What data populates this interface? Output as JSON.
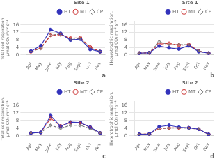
{
  "chart_data": [
    {
      "type": "line",
      "title": "Site 1",
      "annotations": [
        "a"
      ],
      "ylabel": "Total soil respiration, μmol CO₂ m⁻² s⁻¹",
      "categories": [
        "Apr",
        "May",
        "June",
        "July",
        "Aug",
        "Sept",
        "Oct",
        "Nov"
      ],
      "series": [
        {
          "name": "HT",
          "color": "#3333bb",
          "marker": "circle",
          "line_style": "solid",
          "values": [
            2.0,
            5.0,
            13.5,
            11.5,
            8.0,
            8.5,
            3.0,
            1.8
          ],
          "errors": [
            0.15,
            0.4,
            0.8,
            0.5,
            0.4,
            0.5,
            0.3,
            0.15
          ]
        },
        {
          "name": "MT",
          "color": "#cc3333",
          "marker": "open-circle",
          "line_style": "dashed",
          "values": [
            1.8,
            3.8,
            10.5,
            10.8,
            9.0,
            9.2,
            4.2,
            1.8
          ],
          "errors": [
            0.15,
            0.3,
            0.6,
            0.5,
            0.4,
            0.4,
            0.3,
            0.15
          ]
        },
        {
          "name": "CP",
          "color": "#777777",
          "marker": "open-diamond",
          "line_style": "dashed",
          "values": [
            1.8,
            3.5,
            10.5,
            11.2,
            8.2,
            8.8,
            4.0,
            1.8
          ],
          "errors": [
            0.15,
            0.3,
            0.5,
            0.6,
            0.4,
            0.5,
            0.3,
            0.15
          ]
        }
      ],
      "ylim": [
        0,
        18
      ],
      "yticks": [
        0,
        4,
        8,
        12,
        16
      ],
      "grid": "y",
      "legend": "upper right"
    },
    {
      "type": "line",
      "title": "Site 1",
      "annotations": [
        "b"
      ],
      "ylabel": "Heterotrophic respiration, μmol CO₂ m⁻² s⁻¹",
      "categories": [
        "Apr",
        "May",
        "June",
        "July",
        "Aug",
        "Sept",
        "Oct",
        "Nov"
      ],
      "series": [
        {
          "name": "HT",
          "color": "#3333bb",
          "marker": "circle",
          "line_style": "solid",
          "values": [
            1.0,
            1.2,
            4.8,
            3.8,
            3.2,
            5.0,
            1.8,
            1.0
          ],
          "errors": [
            0.1,
            0.1,
            0.4,
            0.3,
            0.3,
            0.4,
            0.2,
            0.1
          ]
        },
        {
          "name": "MT",
          "color": "#cc3333",
          "marker": "open-circle",
          "line_style": "dashed",
          "values": [
            1.0,
            1.2,
            5.8,
            6.2,
            5.2,
            5.5,
            2.0,
            1.0
          ],
          "errors": [
            0.1,
            0.1,
            0.4,
            0.4,
            0.3,
            0.4,
            0.2,
            0.1
          ]
        },
        {
          "name": "CP",
          "color": "#777777",
          "marker": "open-diamond",
          "line_style": "dashed",
          "values": [
            1.0,
            1.2,
            7.0,
            5.5,
            5.5,
            5.5,
            2.2,
            1.0
          ],
          "errors": [
            0.1,
            0.1,
            0.5,
            0.4,
            0.3,
            0.4,
            0.2,
            0.1
          ]
        }
      ],
      "ylim": [
        0,
        18
      ],
      "yticks": [
        0,
        4,
        8,
        12,
        16
      ],
      "grid": "y",
      "legend": "upper right"
    },
    {
      "type": "line",
      "title": "Site 2",
      "annotations": [
        "c"
      ],
      "ylabel": "Total soil respiration, μmol CO₂ m⁻² s⁻¹",
      "categories": [
        "Apr",
        "May",
        "June",
        "July",
        "Aug",
        "Sept",
        "Oct",
        "Nov"
      ],
      "series": [
        {
          "name": "HT",
          "color": "#3333bb",
          "marker": "circle",
          "line_style": "solid",
          "values": [
            1.5,
            1.8,
            10.5,
            5.0,
            7.2,
            7.0,
            4.5,
            1.5
          ],
          "errors": [
            0.15,
            0.15,
            1.2,
            0.4,
            0.5,
            0.5,
            0.3,
            0.15
          ]
        },
        {
          "name": "MT",
          "color": "#cc3333",
          "marker": "open-circle",
          "line_style": "dashed",
          "values": [
            1.5,
            1.8,
            9.2,
            5.2,
            7.0,
            6.8,
            4.5,
            1.5
          ],
          "errors": [
            0.15,
            0.15,
            0.8,
            0.4,
            0.5,
            0.4,
            0.3,
            0.15
          ]
        },
        {
          "name": "CP",
          "color": "#777777",
          "marker": "open-diamond",
          "line_style": "dashed",
          "values": [
            1.5,
            1.8,
            5.5,
            4.0,
            5.5,
            5.5,
            3.8,
            1.5
          ],
          "errors": [
            0.15,
            0.15,
            0.5,
            0.3,
            0.4,
            0.4,
            0.3,
            0.15
          ]
        }
      ],
      "ylim": [
        0,
        18
      ],
      "yticks": [
        0,
        4,
        8,
        12,
        16
      ],
      "grid": "y",
      "legend": "upper right"
    },
    {
      "type": "line",
      "title": "Site 2",
      "annotations": [
        "d"
      ],
      "ylabel": "Heterotrophic respiration, μmol CO₂ m⁻² s⁻¹",
      "categories": [
        "Apr",
        "May",
        "June",
        "July",
        "Aug",
        "Sept",
        "Oct",
        "Nov"
      ],
      "series": [
        {
          "name": "HT",
          "color": "#3333bb",
          "marker": "circle",
          "line_style": "solid",
          "values": [
            0.9,
            1.0,
            4.8,
            5.5,
            4.5,
            4.2,
            3.5,
            0.8
          ],
          "errors": [
            0.1,
            0.1,
            0.4,
            0.4,
            0.3,
            0.3,
            0.3,
            0.1
          ]
        },
        {
          "name": "MT",
          "color": "#cc3333",
          "marker": "open-circle",
          "line_style": "dashed",
          "values": [
            0.9,
            1.0,
            3.8,
            4.2,
            4.2,
            4.2,
            3.5,
            0.8
          ],
          "errors": [
            0.1,
            0.1,
            0.3,
            0.3,
            0.3,
            0.3,
            0.3,
            0.1
          ]
        },
        {
          "name": "CP",
          "color": "#777777",
          "marker": "open-diamond",
          "line_style": "dashed",
          "values": [
            0.9,
            1.0,
            3.8,
            4.0,
            4.2,
            4.0,
            3.5,
            0.8
          ],
          "errors": [
            0.1,
            0.1,
            0.3,
            0.3,
            0.3,
            0.3,
            0.3,
            0.1
          ]
        }
      ],
      "ylim": [
        0,
        18
      ],
      "yticks": [
        0,
        4,
        8,
        12,
        16
      ],
      "grid": "y",
      "legend": "upper right"
    }
  ]
}
